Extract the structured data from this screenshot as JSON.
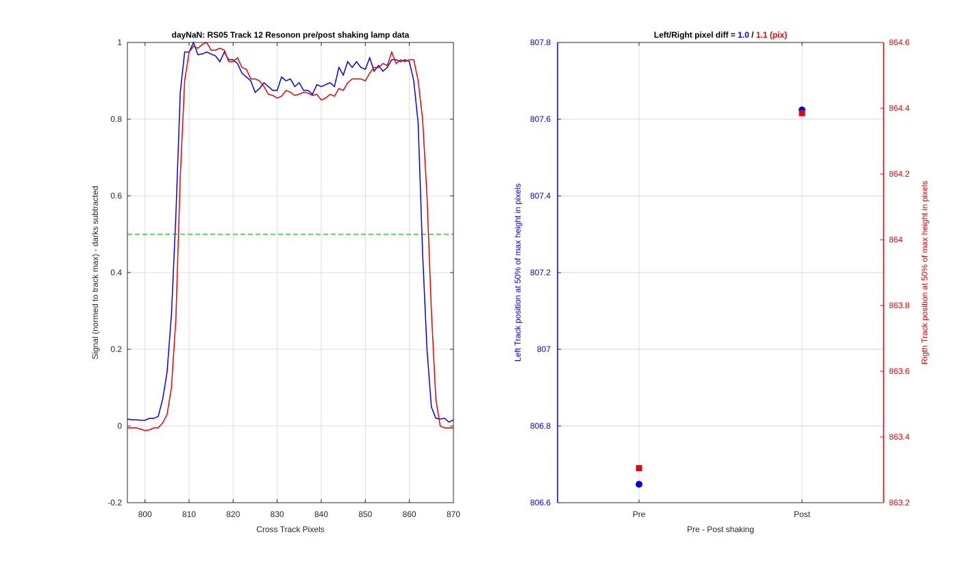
{
  "chart_data": [
    {
      "type": "line",
      "title": "dayNaN: RS05  Track 12 Resonon pre/post shaking lamp data",
      "xlabel": "Cross Track Pixels",
      "ylabel": "Signal (normed to track max) - darks subtracted",
      "xlim": [
        796,
        870
      ],
      "ylim": [
        -0.2,
        1
      ],
      "xticks": [
        800,
        810,
        820,
        830,
        840,
        850,
        860,
        870
      ],
      "yticks": [
        -0.2,
        0,
        0.2,
        0.4,
        0.6,
        0.8,
        1
      ],
      "ytick_labels": [
        "-0.2",
        "0",
        "0.2",
        "0.4",
        "0.6",
        "0.8",
        "1"
      ],
      "grid": true,
      "threshold": {
        "y": 0.5,
        "color": "#22dd22",
        "style": "dashed"
      },
      "series": [
        {
          "color": "#0000ee",
          "x": [
            796,
            797,
            798,
            799,
            800,
            801,
            802,
            803,
            804,
            805,
            806,
            807,
            808,
            809,
            810,
            811,
            812,
            813,
            814,
            815,
            816,
            817,
            818,
            819,
            820,
            821,
            822,
            823,
            824,
            825,
            826,
            827,
            828,
            829,
            830,
            831,
            832,
            833,
            834,
            835,
            836,
            837,
            838,
            839,
            840,
            841,
            842,
            843,
            844,
            845,
            846,
            847,
            848,
            849,
            850,
            851,
            852,
            853,
            854,
            855,
            856,
            857,
            858,
            859,
            860,
            861,
            862,
            863,
            864,
            865,
            866,
            867,
            868,
            869,
            870
          ],
          "values": [
            0.018,
            0.016,
            0.016,
            0.015,
            0.015,
            0.02,
            0.02,
            0.025,
            0.07,
            0.14,
            0.29,
            0.55,
            0.87,
            0.975,
            0.975,
            1.0,
            0.968,
            0.97,
            0.975,
            0.97,
            0.965,
            0.95,
            0.975,
            0.955,
            0.955,
            0.945,
            0.92,
            0.91,
            0.9,
            0.87,
            0.88,
            0.895,
            0.885,
            0.875,
            0.875,
            0.91,
            0.9,
            0.905,
            0.885,
            0.895,
            0.875,
            0.875,
            0.865,
            0.89,
            0.885,
            0.89,
            0.895,
            0.885,
            0.935,
            0.915,
            0.95,
            0.935,
            0.95,
            0.935,
            0.93,
            0.96,
            0.925,
            0.94,
            0.925,
            0.935,
            0.955,
            0.955,
            0.95,
            0.955,
            0.95,
            0.9,
            0.79,
            0.45,
            0.2,
            0.05,
            0.02,
            0.018,
            0.02,
            0.01,
            0.016
          ]
        },
        {
          "color": "#ee0000",
          "x": [
            796,
            797,
            798,
            799,
            800,
            801,
            802,
            803,
            804,
            805,
            806,
            807,
            808,
            809,
            810,
            811,
            812,
            813,
            814,
            815,
            816,
            817,
            818,
            819,
            820,
            821,
            822,
            823,
            824,
            825,
            826,
            827,
            828,
            829,
            830,
            831,
            832,
            833,
            834,
            835,
            836,
            837,
            838,
            839,
            840,
            841,
            842,
            843,
            844,
            845,
            846,
            847,
            848,
            849,
            850,
            851,
            852,
            853,
            854,
            855,
            856,
            857,
            858,
            859,
            860,
            861,
            862,
            863,
            864,
            865,
            866,
            867,
            868,
            869,
            870
          ],
          "values": [
            -0.005,
            -0.005,
            -0.005,
            -0.008,
            -0.012,
            -0.01,
            -0.005,
            -0.005,
            0.008,
            0.03,
            0.1,
            0.28,
            0.65,
            0.9,
            0.975,
            0.99,
            0.985,
            0.995,
            1.0,
            0.98,
            0.98,
            0.985,
            0.98,
            0.95,
            0.95,
            0.96,
            0.935,
            0.93,
            0.905,
            0.905,
            0.9,
            0.885,
            0.865,
            0.862,
            0.855,
            0.86,
            0.875,
            0.87,
            0.862,
            0.865,
            0.87,
            0.868,
            0.862,
            0.865,
            0.85,
            0.855,
            0.865,
            0.86,
            0.88,
            0.875,
            0.895,
            0.905,
            0.905,
            0.905,
            0.9,
            0.92,
            0.935,
            0.935,
            0.945,
            0.94,
            0.975,
            0.945,
            0.955,
            0.95,
            0.955,
            0.955,
            0.9,
            0.8,
            0.6,
            0.3,
            0.07,
            0.0,
            -0.005,
            -0.005,
            -0.005
          ]
        }
      ]
    },
    {
      "type": "scatter",
      "title_parts": [
        {
          "text": "Left/Right pixel diff = ",
          "color": "#000000"
        },
        {
          "text": "1.0",
          "color": "#0000ee"
        },
        {
          "text": " / ",
          "color": "#000000"
        },
        {
          "text": "1.1 (pix)",
          "color": "#ee0000"
        }
      ],
      "xlabel": "Pre - Post shaking",
      "categories": [
        "Pre",
        "Post"
      ],
      "xlim": [
        0.5,
        2.5
      ],
      "left_axis": {
        "label": "Left Track position at 50% of max height in pixels",
        "color": "#0000ee",
        "ylim": [
          806.6,
          807.8
        ],
        "ticks": [
          806.6,
          806.8,
          807,
          807.2,
          807.4,
          807.6,
          807.8
        ],
        "tick_labels": [
          "806.6",
          "806.8",
          "807",
          "807.2",
          "807.4",
          "807.6",
          "807.8"
        ]
      },
      "right_axis": {
        "label": "Rigth Track position at 50% of max height in pixels",
        "color": "#ee0000",
        "ylim": [
          863.2,
          864.6
        ],
        "ticks": [
          863.2,
          863.4,
          863.6,
          863.8,
          864,
          864.2,
          864.4,
          864.6
        ],
        "tick_labels": [
          "863.2",
          "863.4",
          "863.6",
          "863.8",
          "864",
          "864.2",
          "864.4",
          "864.6"
        ]
      },
      "grid": true,
      "series": [
        {
          "axis": "left",
          "marker": "circle",
          "color": "#0000ee",
          "x": [
            1,
            2
          ],
          "values": [
            806.648,
            807.624
          ]
        },
        {
          "axis": "right",
          "marker": "square",
          "color": "#ee0000",
          "x": [
            1,
            2
          ],
          "values": [
            863.305,
            864.385
          ]
        }
      ]
    }
  ]
}
